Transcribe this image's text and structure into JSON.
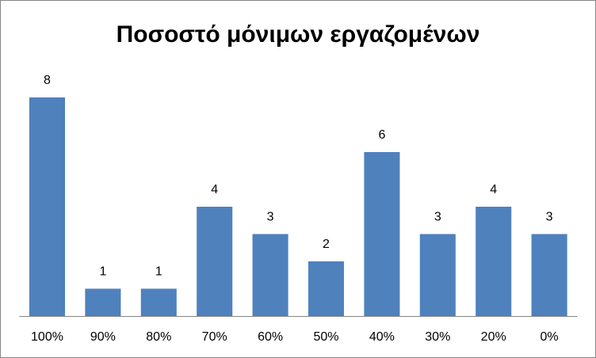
{
  "chart_data": {
    "type": "bar",
    "title": "Ποσοστό μόνιμων εργαζομένων",
    "categories": [
      "100%",
      "90%",
      "80%",
      "70%",
      "60%",
      "50%",
      "40%",
      "30%",
      "20%",
      "0%"
    ],
    "values": [
      8,
      1,
      1,
      4,
      3,
      2,
      6,
      3,
      4,
      3
    ],
    "color": "#4f81bd",
    "data_labels": true
  }
}
